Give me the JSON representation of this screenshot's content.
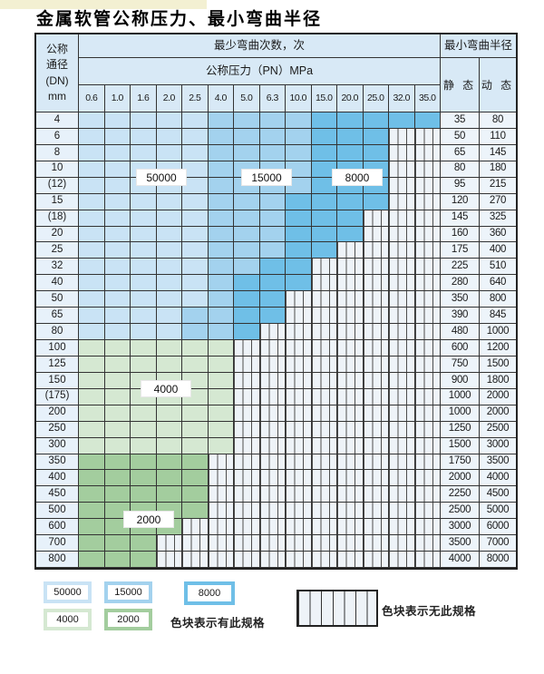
{
  "title": "金属软管公称压力、最小弯曲半径",
  "colors": {
    "b1": "#c9e3f5",
    "b2": "#a3d2ee",
    "b3": "#6fbfe7",
    "g1": "#d5e8d2",
    "g2": "#a3cd9e",
    "none_bg": "#eef3f8",
    "header_bg": "#d8e9f6"
  },
  "table": {
    "dn_header_lines": [
      "公称",
      "通径",
      "(DN)",
      "mm"
    ],
    "bend_cycles_header": "最少弯曲次数，次",
    "pressure_header": "公称压力（PN）MPa",
    "radius_header": "最小弯曲半径",
    "static_header": "静 态",
    "dynamic_header": "动 态",
    "pressures": [
      "0.6",
      "1.0",
      "1.6",
      "2.0",
      "2.5",
      "4.0",
      "5.0",
      "6.3",
      "10.0",
      "15.0",
      "20.0",
      "25.0",
      "32.0",
      "35.0"
    ],
    "cell_legend": {
      "b1": "50000次",
      "b2": "15000次",
      "b3": "8000次",
      "g1": "4000次",
      "g2": "2000次",
      "x": "无此规格"
    },
    "rows": [
      {
        "dn": "4",
        "cells": [
          "b1",
          "b1",
          "b1",
          "b1",
          "b1",
          "b2",
          "b2",
          "b2",
          "b2",
          "b3",
          "b3",
          "b3",
          "b3",
          "b3"
        ],
        "static": "35",
        "dynamic": "80"
      },
      {
        "dn": "6",
        "cells": [
          "b1",
          "b1",
          "b1",
          "b1",
          "b1",
          "b2",
          "b2",
          "b2",
          "b2",
          "b3",
          "b3",
          "b3",
          "x",
          "x"
        ],
        "static": "50",
        "dynamic": "110"
      },
      {
        "dn": "8",
        "cells": [
          "b1",
          "b1",
          "b1",
          "b1",
          "b1",
          "b2",
          "b2",
          "b2",
          "b2",
          "b3",
          "b3",
          "b3",
          "x",
          "x"
        ],
        "static": "65",
        "dynamic": "145"
      },
      {
        "dn": "10",
        "cells": [
          "b1",
          "b1",
          "b1",
          "b1",
          "b1",
          "b2",
          "b2",
          "b2",
          "b2",
          "b3",
          "b3",
          "b3",
          "x",
          "x"
        ],
        "static": "80",
        "dynamic": "180"
      },
      {
        "dn": "(12)",
        "cells": [
          "b1",
          "b1",
          "b1",
          "b1",
          "b1",
          "b2",
          "b2",
          "b2",
          "b2",
          "b3",
          "b3",
          "b3",
          "x",
          "x"
        ],
        "static": "95",
        "dynamic": "215"
      },
      {
        "dn": "15",
        "cells": [
          "b1",
          "b1",
          "b1",
          "b1",
          "b1",
          "b2",
          "b2",
          "b2",
          "b3",
          "b3",
          "b3",
          "b3",
          "x",
          "x"
        ],
        "static": "120",
        "dynamic": "270"
      },
      {
        "dn": "(18)",
        "cells": [
          "b1",
          "b1",
          "b1",
          "b1",
          "b1",
          "b2",
          "b2",
          "b2",
          "b3",
          "b3",
          "b3",
          "x",
          "x",
          "x"
        ],
        "static": "145",
        "dynamic": "325"
      },
      {
        "dn": "20",
        "cells": [
          "b1",
          "b1",
          "b1",
          "b1",
          "b1",
          "b2",
          "b2",
          "b2",
          "b3",
          "b3",
          "b3",
          "x",
          "x",
          "x"
        ],
        "static": "160",
        "dynamic": "360"
      },
      {
        "dn": "25",
        "cells": [
          "b1",
          "b1",
          "b1",
          "b1",
          "b1",
          "b2",
          "b2",
          "b2",
          "b3",
          "b3",
          "x",
          "x",
          "x",
          "x"
        ],
        "static": "175",
        "dynamic": "400"
      },
      {
        "dn": "32",
        "cells": [
          "b1",
          "b1",
          "b1",
          "b1",
          "b1",
          "b2",
          "b2",
          "b3",
          "b3",
          "x",
          "x",
          "x",
          "x",
          "x"
        ],
        "static": "225",
        "dynamic": "510"
      },
      {
        "dn": "40",
        "cells": [
          "b1",
          "b1",
          "b1",
          "b1",
          "b1",
          "b2",
          "b3",
          "b3",
          "b3",
          "x",
          "x",
          "x",
          "x",
          "x"
        ],
        "static": "280",
        "dynamic": "640"
      },
      {
        "dn": "50",
        "cells": [
          "b1",
          "b1",
          "b1",
          "b1",
          "b1",
          "b2",
          "b3",
          "b3",
          "x",
          "x",
          "x",
          "x",
          "x",
          "x"
        ],
        "static": "350",
        "dynamic": "800"
      },
      {
        "dn": "65",
        "cells": [
          "b1",
          "b1",
          "b1",
          "b1",
          "b2",
          "b2",
          "b3",
          "b3",
          "x",
          "x",
          "x",
          "x",
          "x",
          "x"
        ],
        "static": "390",
        "dynamic": "845"
      },
      {
        "dn": "80",
        "cells": [
          "b1",
          "b1",
          "b1",
          "b1",
          "b2",
          "b2",
          "b3",
          "x",
          "x",
          "x",
          "x",
          "x",
          "x",
          "x"
        ],
        "static": "480",
        "dynamic": "1000"
      },
      {
        "dn": "100",
        "cells": [
          "g1",
          "g1",
          "g1",
          "g1",
          "g1",
          "g1",
          "x",
          "x",
          "x",
          "x",
          "x",
          "x",
          "x",
          "x"
        ],
        "static": "600",
        "dynamic": "1200"
      },
      {
        "dn": "125",
        "cells": [
          "g1",
          "g1",
          "g1",
          "g1",
          "g1",
          "g1",
          "x",
          "x",
          "x",
          "x",
          "x",
          "x",
          "x",
          "x"
        ],
        "static": "750",
        "dynamic": "1500"
      },
      {
        "dn": "150",
        "cells": [
          "g1",
          "g1",
          "g1",
          "g1",
          "g1",
          "g1",
          "x",
          "x",
          "x",
          "x",
          "x",
          "x",
          "x",
          "x"
        ],
        "static": "900",
        "dynamic": "1800"
      },
      {
        "dn": "(175)",
        "cells": [
          "g1",
          "g1",
          "g1",
          "g1",
          "g1",
          "g1",
          "x",
          "x",
          "x",
          "x",
          "x",
          "x",
          "x",
          "x"
        ],
        "static": "1000",
        "dynamic": "2000"
      },
      {
        "dn": "200",
        "cells": [
          "g1",
          "g1",
          "g1",
          "g1",
          "g1",
          "g1",
          "x",
          "x",
          "x",
          "x",
          "x",
          "x",
          "x",
          "x"
        ],
        "static": "1000",
        "dynamic": "2000"
      },
      {
        "dn": "250",
        "cells": [
          "g1",
          "g1",
          "g1",
          "g1",
          "g1",
          "g1",
          "x",
          "x",
          "x",
          "x",
          "x",
          "x",
          "x",
          "x"
        ],
        "static": "1250",
        "dynamic": "2500"
      },
      {
        "dn": "300",
        "cells": [
          "g1",
          "g1",
          "g1",
          "g1",
          "g1",
          "g1",
          "x",
          "x",
          "x",
          "x",
          "x",
          "x",
          "x",
          "x"
        ],
        "static": "1500",
        "dynamic": "3000"
      },
      {
        "dn": "350",
        "cells": [
          "g2",
          "g2",
          "g2",
          "g2",
          "g2",
          "x",
          "x",
          "x",
          "x",
          "x",
          "x",
          "x",
          "x",
          "x"
        ],
        "static": "1750",
        "dynamic": "3500"
      },
      {
        "dn": "400",
        "cells": [
          "g2",
          "g2",
          "g2",
          "g2",
          "g2",
          "x",
          "x",
          "x",
          "x",
          "x",
          "x",
          "x",
          "x",
          "x"
        ],
        "static": "2000",
        "dynamic": "4000"
      },
      {
        "dn": "450",
        "cells": [
          "g2",
          "g2",
          "g2",
          "g2",
          "g2",
          "x",
          "x",
          "x",
          "x",
          "x",
          "x",
          "x",
          "x",
          "x"
        ],
        "static": "2250",
        "dynamic": "4500"
      },
      {
        "dn": "500",
        "cells": [
          "g2",
          "g2",
          "g2",
          "g2",
          "g2",
          "x",
          "x",
          "x",
          "x",
          "x",
          "x",
          "x",
          "x",
          "x"
        ],
        "static": "2500",
        "dynamic": "5000"
      },
      {
        "dn": "600",
        "cells": [
          "g2",
          "g2",
          "g2",
          "g2",
          "x",
          "x",
          "x",
          "x",
          "x",
          "x",
          "x",
          "x",
          "x",
          "x"
        ],
        "static": "3000",
        "dynamic": "6000"
      },
      {
        "dn": "700",
        "cells": [
          "g2",
          "g2",
          "g2",
          "x",
          "x",
          "x",
          "x",
          "x",
          "x",
          "x",
          "x",
          "x",
          "x",
          "x"
        ],
        "static": "3500",
        "dynamic": "7000"
      },
      {
        "dn": "800",
        "cells": [
          "g2",
          "g2",
          "g2",
          "x",
          "x",
          "x",
          "x",
          "x",
          "x",
          "x",
          "x",
          "x",
          "x",
          "x"
        ],
        "static": "4000",
        "dynamic": "8000"
      }
    ]
  },
  "overlay_labels": [
    {
      "text": "50000"
    },
    {
      "text": "15000"
    },
    {
      "text": "8000"
    },
    {
      "text": "4000"
    },
    {
      "text": "2000"
    }
  ],
  "legend": {
    "has_spec_items": [
      {
        "value": "50000",
        "code": "b1"
      },
      {
        "value": "15000",
        "code": "b2"
      },
      {
        "value": "8000",
        "code": "b3"
      },
      {
        "value": "4000",
        "code": "g1"
      },
      {
        "value": "2000",
        "code": "g2"
      }
    ],
    "has_spec_text": "色块表示有此规格",
    "no_spec_text": "色块表示无此规格"
  }
}
